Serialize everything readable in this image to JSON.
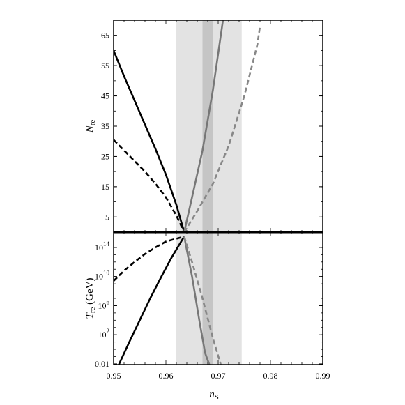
{
  "chart_data": [
    {
      "type": "line",
      "panel": "top",
      "xlabel": "n_S",
      "ylabel": "N_re",
      "ylabel_main": "N",
      "ylabel_sub": "re",
      "xlim": [
        0.95,
        0.99
      ],
      "ylim": [
        0,
        70
      ],
      "yticks": [
        5,
        15,
        25,
        35,
        45,
        55,
        65
      ],
      "ytick_labels": [
        "5",
        "15",
        "25",
        "35",
        "45",
        "55",
        "65"
      ],
      "bands": [
        {
          "x": [
            0.962,
            0.9745
          ],
          "color": "#e3e3e3"
        },
        {
          "x": [
            0.967,
            0.969
          ],
          "color": "#c5c5c5"
        }
      ],
      "series": [
        {
          "color": "#000000",
          "dash": false,
          "x": [
            0.95,
            0.952,
            0.954,
            0.956,
            0.958,
            0.96,
            0.962,
            0.9635
          ],
          "y": [
            60,
            51.5,
            43.5,
            35.5,
            27.5,
            19,
            9,
            0
          ]
        },
        {
          "color": "#000000",
          "dash": true,
          "x": [
            0.95,
            0.952,
            0.954,
            0.956,
            0.958,
            0.96,
            0.962,
            0.9635
          ],
          "y": [
            30.5,
            27,
            23.5,
            20,
            16,
            11.5,
            5.5,
            0
          ]
        },
        {
          "color": "#777777",
          "dash": false,
          "x": [
            0.9635,
            0.965,
            0.967,
            0.969,
            0.971
          ],
          "y": [
            0,
            11.5,
            27,
            47,
            71
          ]
        },
        {
          "color": "#888888",
          "dash": true,
          "x": [
            0.9635,
            0.966,
            0.969,
            0.972,
            0.975,
            0.9775,
            0.978
          ],
          "y": [
            0,
            7,
            16,
            28.5,
            45,
            62,
            68
          ]
        }
      ]
    },
    {
      "type": "line",
      "panel": "bottom",
      "xlabel": "n_S",
      "ylabel": "T_re (GeV)",
      "ylabel_main": "T",
      "ylabel_sub": "re",
      "ylabel_unit": " (GeV)",
      "xlim": [
        0.95,
        0.99
      ],
      "ylim_log10": [
        -2.1,
        16.1
      ],
      "yscale": "log",
      "yticks_log10": [
        -2,
        2,
        6,
        10,
        14
      ],
      "ytick_labels": [
        {
          "base": "0.01",
          "exp": ""
        },
        {
          "base": "10",
          "exp": "2"
        },
        {
          "base": "10",
          "exp": "6"
        },
        {
          "base": "10",
          "exp": "10"
        },
        {
          "base": "10",
          "exp": "14"
        }
      ],
      "xticks": [
        0.95,
        0.96,
        0.97,
        0.98,
        0.99
      ],
      "xtick_labels": [
        "0.95",
        "0.96",
        "0.97",
        "0.98",
        "0.99"
      ],
      "bands": [
        {
          "x": [
            0.962,
            0.9745
          ],
          "color": "#e3e3e3"
        },
        {
          "x": [
            0.967,
            0.969
          ],
          "color": "#c5c5c5"
        }
      ],
      "series_log10": [
        {
          "color": "#000000",
          "dash": false,
          "x": [
            0.951,
            0.953,
            0.955,
            0.957,
            0.959,
            0.961,
            0.9635
          ],
          "y": [
            -2.1,
            1,
            4,
            7,
            9.8,
            12.5,
            15.5
          ]
        },
        {
          "color": "#000000",
          "dash": true,
          "x": [
            0.95,
            0.952,
            0.954,
            0.956,
            0.958,
            0.96,
            0.9635
          ],
          "y": [
            9.4,
            10.8,
            12,
            13.1,
            14,
            14.8,
            15.5
          ]
        },
        {
          "color": "#777777",
          "dash": false,
          "x": [
            0.9635,
            0.965,
            0.9665,
            0.9675,
            0.9683
          ],
          "y": [
            15.5,
            10,
            3.5,
            -0.5,
            -2.1
          ]
        },
        {
          "color": "#888888",
          "dash": true,
          "x": [
            0.9635,
            0.965,
            0.967,
            0.969,
            0.9705
          ],
          "y": [
            15.5,
            12,
            7,
            1.5,
            -2.1
          ]
        }
      ]
    }
  ]
}
